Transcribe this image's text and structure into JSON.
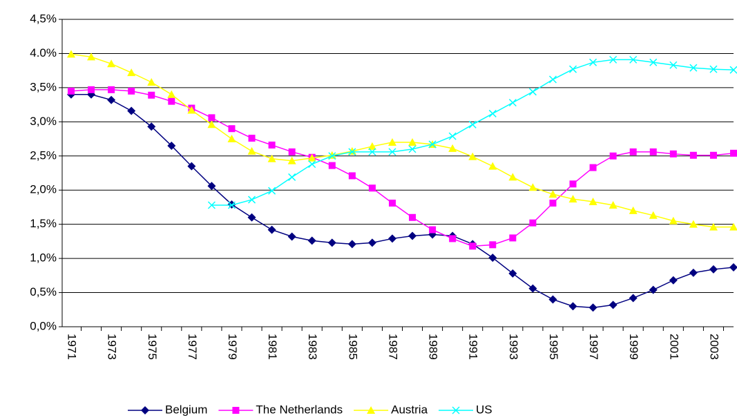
{
  "chart_data": {
    "type": "line",
    "categories": [
      "1971",
      null,
      "1973",
      null,
      "1975",
      null,
      "1977",
      null,
      "1979",
      null,
      "1981",
      null,
      "1983",
      null,
      "1985",
      null,
      "1987",
      null,
      "1989",
      null,
      "1991",
      null,
      "1993",
      null,
      "1995",
      null,
      "1997",
      null,
      "1999",
      null,
      "2001",
      null,
      "2003",
      null
    ],
    "series": [
      {
        "name": "Belgium",
        "color": "#000080",
        "marker": "diamond",
        "values": [
          3.4,
          3.4,
          3.32,
          3.16,
          2.93,
          2.65,
          2.35,
          2.06,
          1.79,
          1.6,
          1.42,
          1.32,
          1.26,
          1.23,
          1.21,
          1.23,
          1.29,
          1.33,
          1.35,
          1.33,
          1.21,
          1.01,
          0.78,
          0.56,
          0.4,
          0.3,
          0.28,
          0.32,
          0.42,
          0.54,
          0.68,
          0.79,
          0.84,
          0.87
        ]
      },
      {
        "name": "The Netherlands",
        "color": "#ff00ff",
        "marker": "square",
        "values": [
          3.45,
          3.47,
          3.47,
          3.45,
          3.39,
          3.3,
          3.2,
          3.06,
          2.9,
          2.76,
          2.66,
          2.56,
          2.48,
          2.36,
          2.21,
          2.03,
          1.81,
          1.6,
          1.42,
          1.29,
          1.18,
          1.2,
          1.3,
          1.52,
          1.81,
          2.09,
          2.33,
          2.5,
          2.56,
          2.56,
          2.53,
          2.51,
          2.51,
          2.54
        ]
      },
      {
        "name": "Austria",
        "color": "#ffff00",
        "marker": "triangle",
        "values": [
          3.99,
          3.95,
          3.85,
          3.72,
          3.58,
          3.4,
          3.17,
          2.96,
          2.75,
          2.57,
          2.46,
          2.43,
          2.47,
          2.51,
          2.57,
          2.64,
          2.7,
          2.7,
          2.67,
          2.61,
          2.49,
          2.35,
          2.19,
          2.04,
          1.94,
          1.87,
          1.83,
          1.78,
          1.7,
          1.63,
          1.55,
          1.5,
          1.46,
          1.46
        ]
      },
      {
        "name": "US",
        "color": "#00ffff",
        "marker": "x",
        "values": [
          null,
          null,
          null,
          null,
          null,
          null,
          null,
          1.78,
          1.78,
          1.86,
          1.99,
          2.19,
          2.38,
          2.5,
          2.56,
          2.56,
          2.56,
          2.6,
          2.67,
          2.79,
          2.96,
          3.12,
          3.28,
          3.44,
          3.62,
          3.77,
          3.87,
          3.91,
          3.91,
          3.87,
          3.83,
          3.79,
          3.77,
          3.76
        ]
      }
    ],
    "ylim": [
      0,
      4.5
    ],
    "yticks": [
      {
        "value": 0,
        "label": "0,0%"
      },
      {
        "value": 0.5,
        "label": "0,5%"
      },
      {
        "value": 1,
        "label": "1,0%"
      },
      {
        "value": 1.5,
        "label": "1,5%"
      },
      {
        "value": 2,
        "label": "2,0%"
      },
      {
        "value": 2.5,
        "label": "2,5%"
      },
      {
        "value": 3,
        "label": "3,0%"
      },
      {
        "value": 3.5,
        "label": "3,5%"
      },
      {
        "value": 4,
        "label": "4.0%"
      },
      {
        "value": 4.5,
        "label": "4,5%"
      }
    ],
    "grid": true,
    "legend": "bottom"
  }
}
